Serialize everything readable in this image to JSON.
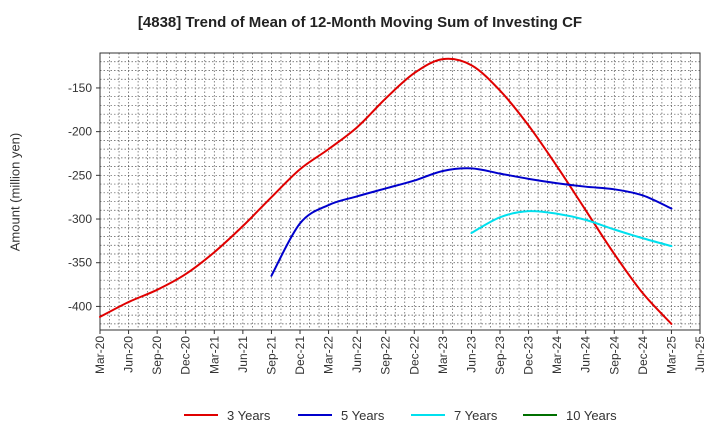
{
  "chart_data": {
    "type": "line",
    "title": "[4838]  Trend of Mean of 12-Month Moving Sum of Investing CF",
    "xlabel": "",
    "ylabel": "Amount (million yen)",
    "ylim": [
      -427,
      -110
    ],
    "yticks": [
      -150,
      -200,
      -250,
      -300,
      -350,
      -400
    ],
    "grid": true,
    "legend_position": "bottom",
    "x_tick_labels": [
      "Mar-20",
      "Jun-20",
      "Sep-20",
      "Dec-20",
      "Mar-21",
      "Jun-21",
      "Sep-21",
      "Dec-21",
      "Mar-22",
      "Jun-22",
      "Sep-22",
      "Dec-22",
      "Mar-23",
      "Jun-23",
      "Sep-23",
      "Dec-23",
      "Mar-24",
      "Jun-24",
      "Sep-24",
      "Dec-24",
      "Mar-25",
      "Jun-25"
    ],
    "series": [
      {
        "name": "3 Years",
        "color": "#e00000",
        "start_index": 0,
        "values": [
          -412,
          -395,
          -381,
          -363,
          -338,
          -308,
          -275,
          -243,
          -220,
          -195,
          -162,
          -133,
          -117,
          -124,
          -153,
          -193,
          -240,
          -290,
          -340,
          -385,
          -420
        ]
      },
      {
        "name": "5 Years",
        "color": "#0000cc",
        "start_index": 6,
        "values": [
          -365,
          -305,
          -284,
          -274,
          -265,
          -256,
          -245,
          -242,
          -248,
          -254,
          -259,
          -263,
          -266,
          -273,
          -288
        ]
      },
      {
        "name": "7 Years",
        "color": "#00e0ee",
        "start_index": 13,
        "values": [
          -316,
          -298,
          -291,
          -294,
          -301,
          -312,
          -322,
          -331
        ]
      },
      {
        "name": "10 Years",
        "color": "#007000",
        "start_index": 0,
        "values": []
      }
    ]
  }
}
